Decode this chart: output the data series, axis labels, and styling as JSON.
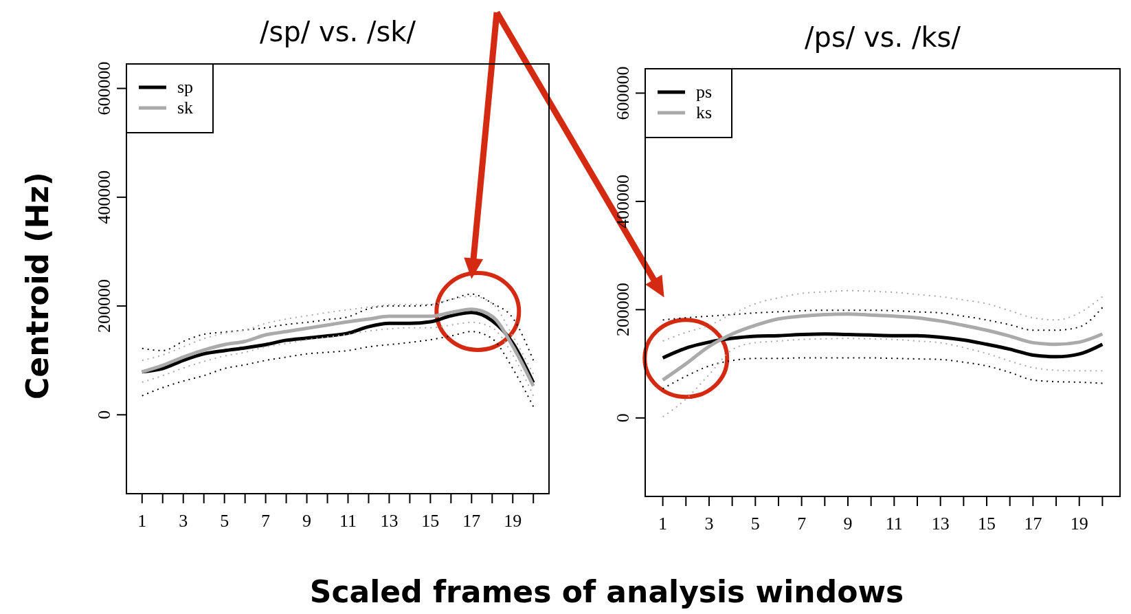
{
  "chart_data": [
    {
      "type": "line",
      "title": "/sp/ vs. /sk/",
      "ylabel": "Centroid (Hz)",
      "xlabel": "Scaled frames of analysis windows",
      "legend": "top left",
      "grid": false,
      "xlim": [
        0.24,
        20.76
      ],
      "ylim": [
        -145000,
        645000
      ],
      "yticks": [
        0,
        200000,
        400000,
        600000
      ],
      "xticks": [
        1,
        {
          "value": 2,
          "label": null
        },
        3,
        {
          "value": 4,
          "label": null
        },
        5,
        {
          "value": 6,
          "label": null
        },
        7,
        {
          "value": 8,
          "label": null
        },
        9,
        {
          "value": 10,
          "label": null
        },
        11,
        {
          "value": 12,
          "label": null
        },
        13,
        {
          "value": 14,
          "label": null
        },
        15,
        {
          "value": 16,
          "label": null
        },
        17,
        {
          "value": 18,
          "label": null
        },
        19,
        {
          "value": 20,
          "label": null
        }
      ],
      "x": [
        1,
        2,
        3,
        4,
        5,
        6,
        7,
        8,
        9,
        10,
        11,
        12,
        13,
        14,
        15,
        16,
        17,
        18,
        19,
        20
      ],
      "series": [
        {
          "name": "sp",
          "color": "#000000",
          "values": [
            79000,
            85000,
            100000,
            112000,
            118000,
            123000,
            129000,
            137000,
            141000,
            145000,
            150000,
            162000,
            168000,
            168000,
            171000,
            182000,
            188000,
            173000,
            132000,
            59000
          ]
        },
        {
          "name": "sk",
          "color": "#aaaaaa",
          "values": [
            79000,
            91000,
            106000,
            119000,
            129000,
            135000,
            147000,
            153000,
            159000,
            165000,
            171000,
            176000,
            181000,
            181000,
            181000,
            188000,
            194000,
            181000,
            126000,
            53000
          ]
        },
        {
          "color": "#000000",
          "line_style": "dotted",
          "values": [
            35000,
            50000,
            62000,
            72000,
            85000,
            92000,
            100000,
            106000,
            112000,
            115000,
            118000,
            125000,
            129000,
            133000,
            138000,
            145000,
            153000,
            140000,
            85000,
            15000
          ]
        },
        {
          "color": "#000000",
          "line_style": "dotted",
          "values": [
            122000,
            118000,
            135000,
            148000,
            152000,
            156000,
            160000,
            166000,
            170000,
            175000,
            180000,
            195000,
            200000,
            200000,
            202000,
            212000,
            222000,
            205000,
            178000,
            100000
          ]
        },
        {
          "color": "#aaaaaa",
          "line_style": "dotted",
          "values": [
            60000,
            72000,
            86000,
            98000,
            108000,
            115000,
            125000,
            131000,
            138000,
            143000,
            148000,
            154000,
            158000,
            160000,
            160000,
            165000,
            170000,
            160000,
            110000,
            35000
          ]
        },
        {
          "color": "#aaaaaa",
          "line_style": "dotted",
          "values": [
            100000,
            110000,
            125000,
            140000,
            150000,
            156000,
            168000,
            176000,
            182000,
            188000,
            193000,
            198000,
            202000,
            203000,
            203000,
            212000,
            218000,
            205000,
            145000,
            75000
          ]
        }
      ]
    },
    {
      "type": "line",
      "title": "/ps/ vs. /ks/",
      "legend": "top left",
      "grid": false,
      "xlim": [
        0.24,
        20.76
      ],
      "ylim": [
        -145000,
        645000
      ],
      "yticks": [
        0,
        200000,
        400000,
        600000
      ],
      "xticks": [
        1,
        {
          "value": 2,
          "label": null
        },
        3,
        {
          "value": 4,
          "label": null
        },
        5,
        {
          "value": 6,
          "label": null
        },
        7,
        {
          "value": 8,
          "label": null
        },
        9,
        {
          "value": 10,
          "label": null
        },
        11,
        {
          "value": 12,
          "label": null
        },
        13,
        {
          "value": 14,
          "label": null
        },
        15,
        {
          "value": 16,
          "label": null
        },
        17,
        {
          "value": 18,
          "label": null
        },
        19,
        {
          "value": 20,
          "label": null
        }
      ],
      "x": [
        1,
        2,
        3,
        4,
        5,
        6,
        7,
        8,
        9,
        10,
        11,
        12,
        13,
        14,
        15,
        16,
        17,
        18,
        19,
        20
      ],
      "series": [
        {
          "name": "ps",
          "color": "#000000",
          "values": [
            111000,
            129000,
            140000,
            147000,
            151000,
            152000,
            154000,
            155000,
            154000,
            153000,
            152000,
            152000,
            149000,
            144000,
            136000,
            127000,
            116000,
            113000,
            118000,
            136000
          ]
        },
        {
          "name": "ks",
          "color": "#aaaaaa",
          "values": [
            70000,
            100000,
            132000,
            155000,
            171000,
            183000,
            188000,
            191000,
            192000,
            190000,
            188000,
            185000,
            179000,
            171000,
            162000,
            151000,
            139000,
            136000,
            140000,
            155000
          ]
        },
        {
          "color": "#000000",
          "line_style": "dotted",
          "values": [
            54000,
            77000,
            96000,
            106000,
            110000,
            110000,
            111000,
            111000,
            111000,
            111000,
            110000,
            109000,
            108000,
            103000,
            96000,
            84000,
            70000,
            67000,
            66000,
            64000
          ]
        },
        {
          "color": "#000000",
          "line_style": "dotted",
          "values": [
            181000,
            185000,
            188000,
            191000,
            194000,
            196000,
            198000,
            199000,
            199000,
            199000,
            198000,
            196000,
            194000,
            188000,
            181000,
            172000,
            162000,
            162000,
            168000,
            204000
          ]
        },
        {
          "color": "#aaaaaa",
          "line_style": "dotted",
          "values": [
            2000,
            35000,
            80000,
            126000,
            139000,
            142000,
            145000,
            146000,
            147000,
            146000,
            145000,
            142000,
            139000,
            130000,
            119000,
            105000,
            93000,
            88000,
            87000,
            87000
          ]
        },
        {
          "color": "#aaaaaa",
          "line_style": "dotted",
          "values": [
            142000,
            158000,
            171000,
            192000,
            211000,
            222000,
            230000,
            233000,
            235000,
            234000,
            232000,
            228000,
            224000,
            218000,
            211000,
            198000,
            185000,
            181000,
            194000,
            224000
          ]
        }
      ]
    }
  ]
}
